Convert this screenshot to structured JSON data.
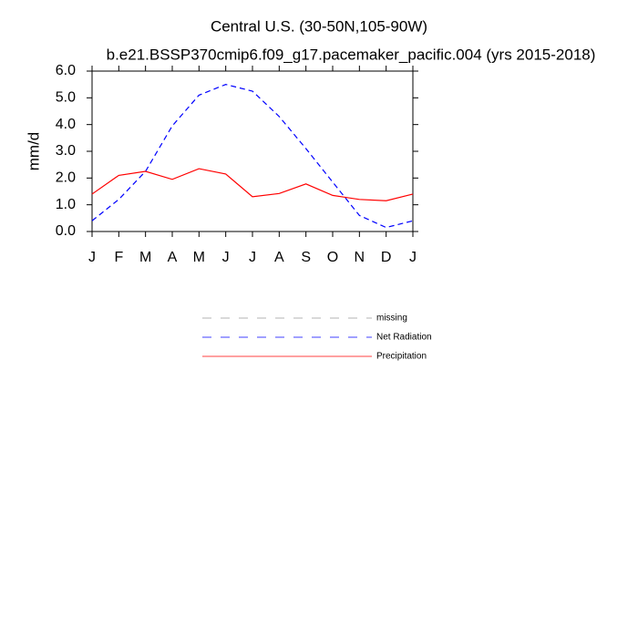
{
  "chart_data": {
    "type": "line",
    "title": "Central U.S. (30-50N,105-90W)",
    "subtitle": "b.e21.BSSP370cmip6.f09_g17.pacemaker_pacific.004 (yrs 2015-2018)",
    "y_label": "mm/d",
    "categories": [
      "J",
      "F",
      "M",
      "A",
      "M",
      "J",
      "J",
      "A",
      "S",
      "O",
      "N",
      "D",
      "J"
    ],
    "ylim": [
      0,
      6
    ],
    "yticks": [
      {
        "value": 0,
        "label": "0.0"
      },
      {
        "value": 1,
        "label": "1.0"
      },
      {
        "value": 2,
        "label": "2.0"
      },
      {
        "value": 3,
        "label": "3.0"
      },
      {
        "value": 4,
        "label": "4.0"
      },
      {
        "value": 5,
        "label": "5.0"
      },
      {
        "value": 6,
        "label": "6.0"
      }
    ],
    "grid": false,
    "legend_extra": [
      {
        "name": "missing",
        "color": "#9a9a9a",
        "dashed": true
      }
    ],
    "series": [
      {
        "name": "Net Radiation",
        "color": "#0000ff",
        "dashed": true,
        "values": [
          0.4,
          1.2,
          2.25,
          3.95,
          5.1,
          5.5,
          5.25,
          4.3,
          3.1,
          1.85,
          0.6,
          0.15,
          0.4
        ]
      },
      {
        "name": "Precipitation",
        "color": "#ff0000",
        "dashed": false,
        "values": [
          1.4,
          2.1,
          2.25,
          1.95,
          2.35,
          2.15,
          1.3,
          1.42,
          1.78,
          1.35,
          1.2,
          1.15,
          1.4
        ]
      }
    ]
  }
}
